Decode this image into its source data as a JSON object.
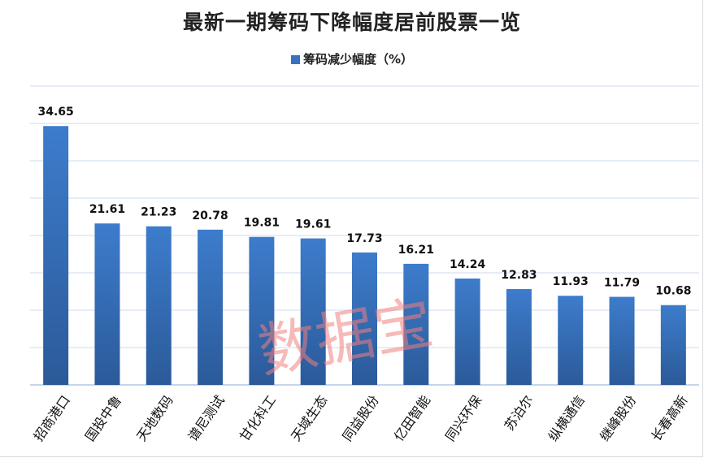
{
  "chart_data": {
    "type": "bar",
    "title": "最新一期筹码下降幅度居前股票一览",
    "legend_position": "top",
    "grid": true,
    "ylim": [
      0,
      40
    ],
    "y_tick_step": 5,
    "y_tick_labels_shown": false,
    "categories": [
      "招商港口",
      "国投中鲁",
      "天地数码",
      "谱尼测试",
      "甘化科工",
      "天域生态",
      "同益股份",
      "亿田智能",
      "同兴环保",
      "苏泊尔",
      "纵横通信",
      "继峰股份",
      "长春高新"
    ],
    "series": [
      {
        "name": "筹码减少幅度（%）",
        "color": "#3a72bf",
        "values": [
          34.65,
          21.61,
          21.23,
          20.78,
          19.81,
          19.61,
          17.73,
          16.21,
          14.24,
          12.83,
          11.93,
          11.79,
          10.68
        ],
        "labels": [
          "34.65",
          "21.61",
          "21.23",
          "20.78",
          "19.81",
          "19.61",
          "17.73",
          "16.21",
          "14.24",
          "12.83",
          "11.93",
          "11.79",
          "10.68"
        ]
      }
    ],
    "watermark": "数据宝"
  }
}
